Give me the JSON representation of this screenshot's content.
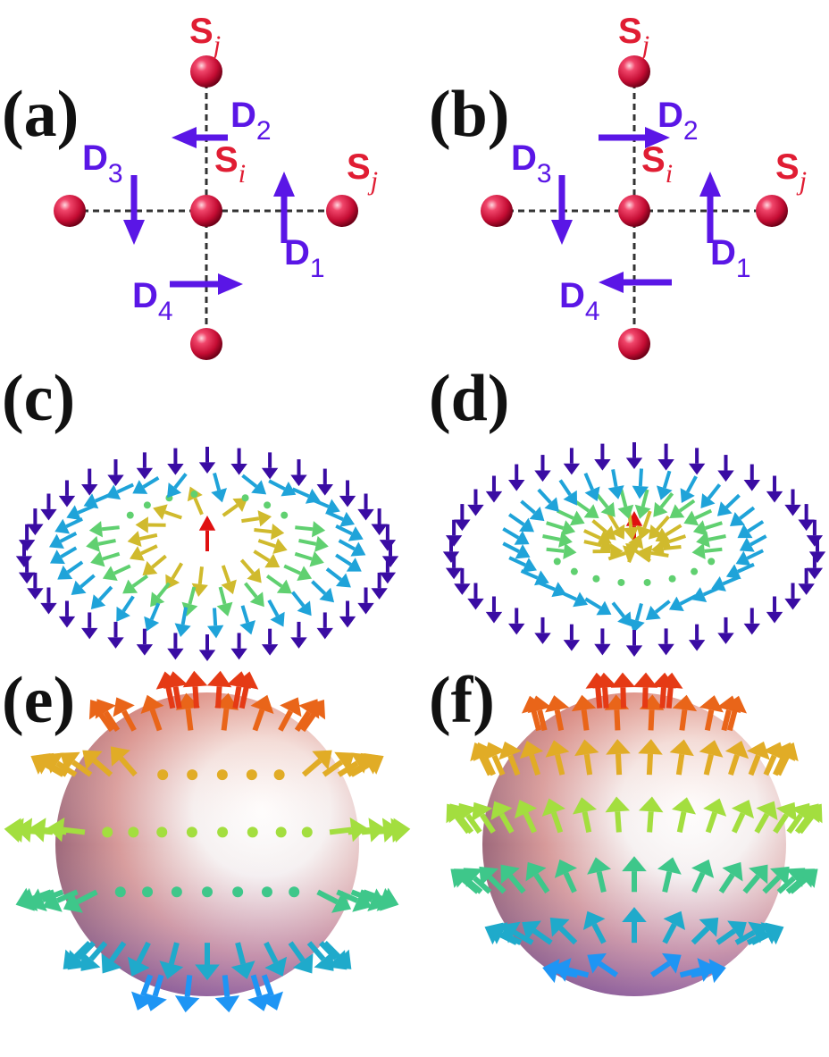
{
  "figure": {
    "panels": {
      "a": {
        "label": "(a)",
        "d2_dir": "left",
        "d4_dir": "right"
      },
      "b": {
        "label": "(b)",
        "d2_dir": "right",
        "d4_dir": "left"
      },
      "c": {
        "label": "(c)"
      },
      "d": {
        "label": "(d)"
      },
      "e": {
        "label": "(e)"
      },
      "f": {
        "label": "(f)"
      }
    },
    "lattice_labels": {
      "S": "S",
      "sub_i": "i",
      "sub_j": "j",
      "D": "D",
      "d_subs": [
        "1",
        "2",
        "3",
        "4"
      ]
    },
    "colors": {
      "atom": "#d8103a",
      "site_label": "#e01d33",
      "dmi_vector": "#5a16e6",
      "arrow_scale": [
        "#3a0ca3",
        "#1e90ff",
        "#20c0a0",
        "#a0e040",
        "#f0a020",
        "#e01010"
      ]
    }
  }
}
